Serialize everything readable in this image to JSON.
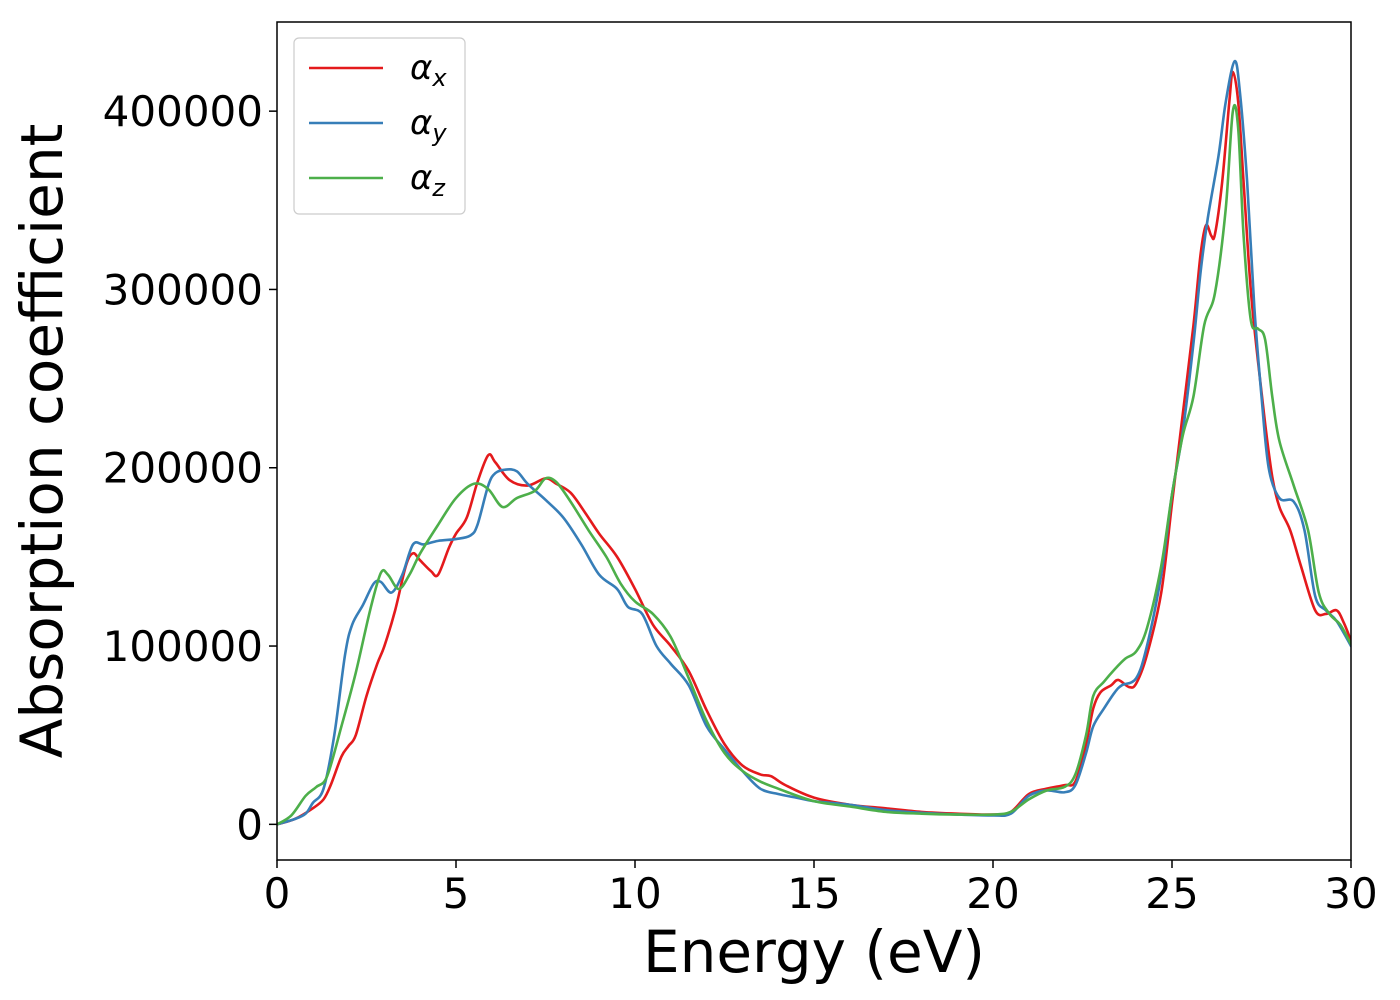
{
  "chart_data": {
    "type": "line",
    "title": "",
    "xlabel": "Energy (eV)",
    "ylabel": "Absorption coefficient",
    "xlim": [
      0,
      30
    ],
    "ylim": [
      -20000,
      450000
    ],
    "xticks": [
      0,
      5,
      10,
      15,
      20,
      25,
      30
    ],
    "xtick_labels": [
      "0",
      "5",
      "10",
      "15",
      "20",
      "25",
      "30"
    ],
    "yticks": [
      0,
      100000,
      200000,
      300000,
      400000
    ],
    "ytick_labels": [
      "0",
      "100000",
      "200000",
      "300000",
      "400000"
    ],
    "grid": false,
    "legend_position": "top-left",
    "series": [
      {
        "name": "α",
        "subscript": "x",
        "color": "#e41a1c",
        "points": [
          [
            0,
            0
          ],
          [
            0.5,
            3000
          ],
          [
            1,
            9000
          ],
          [
            1.3,
            14000
          ],
          [
            1.5,
            22000
          ],
          [
            1.8,
            38000
          ],
          [
            2,
            44000
          ],
          [
            2.2,
            50000
          ],
          [
            2.5,
            72000
          ],
          [
            2.8,
            90000
          ],
          [
            3.0,
            100000
          ],
          [
            3.3,
            120000
          ],
          [
            3.6,
            145000
          ],
          [
            3.8,
            152000
          ],
          [
            4.0,
            148000
          ],
          [
            4.3,
            142000
          ],
          [
            4.5,
            140000
          ],
          [
            4.8,
            155000
          ],
          [
            5.0,
            163000
          ],
          [
            5.3,
            172000
          ],
          [
            5.6,
            192000
          ],
          [
            5.9,
            207000
          ],
          [
            6.1,
            203000
          ],
          [
            6.5,
            193000
          ],
          [
            7.0,
            190000
          ],
          [
            7.5,
            194000
          ],
          [
            7.8,
            191000
          ],
          [
            8.2,
            186000
          ],
          [
            8.6,
            175000
          ],
          [
            9.0,
            163000
          ],
          [
            9.5,
            150000
          ],
          [
            10.0,
            132000
          ],
          [
            10.5,
            112000
          ],
          [
            11.0,
            100000
          ],
          [
            11.5,
            86000
          ],
          [
            12.0,
            64000
          ],
          [
            12.5,
            45000
          ],
          [
            13.0,
            33000
          ],
          [
            13.5,
            28000
          ],
          [
            13.8,
            27000
          ],
          [
            14.2,
            22000
          ],
          [
            15,
            15000
          ],
          [
            16,
            11000
          ],
          [
            17,
            9000
          ],
          [
            18,
            7000
          ],
          [
            19,
            6000
          ],
          [
            20,
            5500
          ],
          [
            20.5,
            7000
          ],
          [
            21,
            17000
          ],
          [
            21.5,
            20000
          ],
          [
            22,
            22000
          ],
          [
            22.3,
            24000
          ],
          [
            22.6,
            45000
          ],
          [
            22.8,
            65000
          ],
          [
            23.0,
            74000
          ],
          [
            23.3,
            78000
          ],
          [
            23.5,
            81000
          ],
          [
            23.8,
            77000
          ],
          [
            24.0,
            79000
          ],
          [
            24.3,
            95000
          ],
          [
            24.7,
            130000
          ],
          [
            25.0,
            180000
          ],
          [
            25.3,
            230000
          ],
          [
            25.6,
            280000
          ],
          [
            25.8,
            320000
          ],
          [
            25.95,
            336000
          ],
          [
            26.1,
            330000
          ],
          [
            26.2,
            331000
          ],
          [
            26.4,
            360000
          ],
          [
            26.6,
            405000
          ],
          [
            26.7,
            422000
          ],
          [
            26.85,
            405000
          ],
          [
            27.0,
            360000
          ],
          [
            27.2,
            300000
          ],
          [
            27.4,
            260000
          ],
          [
            27.6,
            225000
          ],
          [
            27.8,
            195000
          ],
          [
            28.0,
            178000
          ],
          [
            28.3,
            165000
          ],
          [
            28.6,
            145000
          ],
          [
            29.0,
            120000
          ],
          [
            29.3,
            118000
          ],
          [
            29.6,
            120000
          ],
          [
            29.8,
            113000
          ],
          [
            30,
            103000
          ]
        ]
      },
      {
        "name": "α",
        "subscript": "y",
        "color": "#377eb8",
        "points": [
          [
            0,
            0
          ],
          [
            0.5,
            3000
          ],
          [
            0.8,
            6000
          ],
          [
            1.0,
            12000
          ],
          [
            1.3,
            20000
          ],
          [
            1.6,
            50000
          ],
          [
            1.9,
            95000
          ],
          [
            2.1,
            112000
          ],
          [
            2.4,
            123000
          ],
          [
            2.7,
            135000
          ],
          [
            2.9,
            136000
          ],
          [
            3.2,
            130000
          ],
          [
            3.5,
            140000
          ],
          [
            3.8,
            157000
          ],
          [
            4.1,
            157000
          ],
          [
            4.5,
            159000
          ],
          [
            5.0,
            160000
          ],
          [
            5.4,
            162000
          ],
          [
            5.6,
            168000
          ],
          [
            5.9,
            190000
          ],
          [
            6.1,
            197000
          ],
          [
            6.4,
            199000
          ],
          [
            6.7,
            198000
          ],
          [
            7.0,
            191000
          ],
          [
            7.5,
            182000
          ],
          [
            8.0,
            172000
          ],
          [
            8.5,
            157000
          ],
          [
            9.0,
            140000
          ],
          [
            9.5,
            132000
          ],
          [
            9.8,
            122000
          ],
          [
            10.2,
            118000
          ],
          [
            10.6,
            100000
          ],
          [
            11.0,
            90000
          ],
          [
            11.5,
            78000
          ],
          [
            12.0,
            55000
          ],
          [
            12.5,
            42000
          ],
          [
            13.0,
            30000
          ],
          [
            13.5,
            20000
          ],
          [
            14.0,
            17000
          ],
          [
            14.5,
            15000
          ],
          [
            15,
            13000
          ],
          [
            16,
            11000
          ],
          [
            17,
            8000
          ],
          [
            18,
            6500
          ],
          [
            19,
            5500
          ],
          [
            20,
            5000
          ],
          [
            20.5,
            6000
          ],
          [
            21,
            16000
          ],
          [
            21.5,
            19000
          ],
          [
            22,
            18000
          ],
          [
            22.3,
            22000
          ],
          [
            22.6,
            40000
          ],
          [
            22.8,
            55000
          ],
          [
            23.1,
            65000
          ],
          [
            23.4,
            74000
          ],
          [
            23.6,
            78000
          ],
          [
            24.0,
            82000
          ],
          [
            24.3,
            100000
          ],
          [
            24.7,
            140000
          ],
          [
            25.0,
            185000
          ],
          [
            25.3,
            220000
          ],
          [
            25.6,
            270000
          ],
          [
            25.8,
            310000
          ],
          [
            26.0,
            340000
          ],
          [
            26.3,
            375000
          ],
          [
            26.5,
            405000
          ],
          [
            26.75,
            428000
          ],
          [
            26.9,
            410000
          ],
          [
            27.1,
            360000
          ],
          [
            27.3,
            290000
          ],
          [
            27.5,
            240000
          ],
          [
            27.7,
            200000
          ],
          [
            28.0,
            183000
          ],
          [
            28.4,
            181000
          ],
          [
            28.7,
            165000
          ],
          [
            29.0,
            128000
          ],
          [
            29.3,
            120000
          ],
          [
            29.6,
            114000
          ],
          [
            30,
            100000
          ]
        ]
      },
      {
        "name": "α",
        "subscript": "z",
        "color": "#4daf4a",
        "points": [
          [
            0,
            0
          ],
          [
            0.4,
            5000
          ],
          [
            0.8,
            16000
          ],
          [
            1.1,
            21000
          ],
          [
            1.4,
            27000
          ],
          [
            1.8,
            55000
          ],
          [
            2.2,
            85000
          ],
          [
            2.6,
            120000
          ],
          [
            2.9,
            141000
          ],
          [
            3.1,
            140000
          ],
          [
            3.4,
            132000
          ],
          [
            3.7,
            140000
          ],
          [
            4.0,
            152000
          ],
          [
            4.5,
            168000
          ],
          [
            5.0,
            183000
          ],
          [
            5.5,
            191000
          ],
          [
            5.9,
            188000
          ],
          [
            6.3,
            178000
          ],
          [
            6.7,
            183000
          ],
          [
            7.2,
            187000
          ],
          [
            7.5,
            194000
          ],
          [
            7.8,
            192000
          ],
          [
            8.2,
            181000
          ],
          [
            8.7,
            165000
          ],
          [
            9.2,
            150000
          ],
          [
            9.6,
            135000
          ],
          [
            10.0,
            125000
          ],
          [
            10.5,
            118000
          ],
          [
            11.0,
            105000
          ],
          [
            11.5,
            82000
          ],
          [
            12.0,
            58000
          ],
          [
            12.5,
            40000
          ],
          [
            13.0,
            30000
          ],
          [
            13.5,
            24000
          ],
          [
            14.0,
            20000
          ],
          [
            15,
            13000
          ],
          [
            16,
            10000
          ],
          [
            17,
            7000
          ],
          [
            18,
            6000
          ],
          [
            19,
            5500
          ],
          [
            20,
            5500
          ],
          [
            20.5,
            7000
          ],
          [
            21,
            14000
          ],
          [
            21.5,
            19000
          ],
          [
            22,
            21000
          ],
          [
            22.3,
            28000
          ],
          [
            22.6,
            50000
          ],
          [
            22.8,
            72000
          ],
          [
            23.1,
            80000
          ],
          [
            23.4,
            87000
          ],
          [
            23.7,
            93000
          ],
          [
            24.0,
            97000
          ],
          [
            24.3,
            110000
          ],
          [
            24.7,
            145000
          ],
          [
            25.0,
            185000
          ],
          [
            25.3,
            218000
          ],
          [
            25.6,
            240000
          ],
          [
            25.9,
            280000
          ],
          [
            26.2,
            298000
          ],
          [
            26.5,
            345000
          ],
          [
            26.7,
            400000
          ],
          [
            26.85,
            390000
          ],
          [
            27.0,
            330000
          ],
          [
            27.2,
            283000
          ],
          [
            27.4,
            278000
          ],
          [
            27.6,
            272000
          ],
          [
            27.8,
            240000
          ],
          [
            28.0,
            215000
          ],
          [
            28.4,
            190000
          ],
          [
            28.8,
            165000
          ],
          [
            29.1,
            130000
          ],
          [
            29.4,
            118000
          ],
          [
            29.7,
            112000
          ],
          [
            30,
            101000
          ]
        ]
      }
    ]
  }
}
